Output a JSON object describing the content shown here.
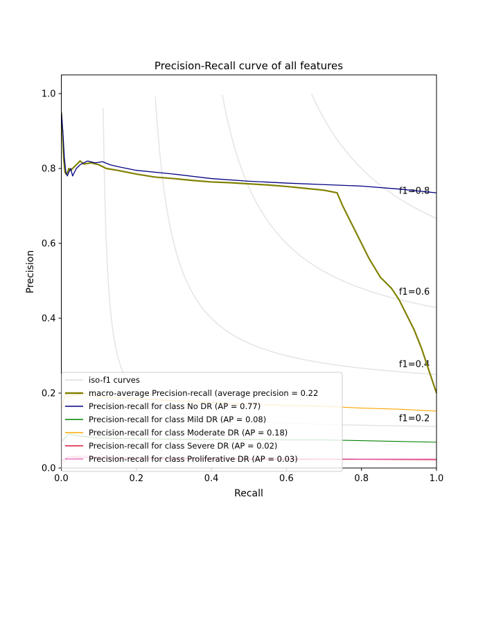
{
  "chart_data": {
    "type": "line",
    "title": "Precision-Recall curve of all features",
    "xlabel": "Recall",
    "ylabel": "Precision",
    "xlim": [
      0.0,
      1.0
    ],
    "ylim": [
      0.0,
      1.05
    ],
    "xticks": [
      "0.0",
      "0.2",
      "0.4",
      "0.6",
      "0.8",
      "1.0"
    ],
    "yticks": [
      "0.0",
      "0.2",
      "0.4",
      "0.6",
      "0.8",
      "1.0"
    ],
    "grid": false,
    "legend_position": "bottom-left",
    "iso_f1": {
      "legend_label": "iso-f1 curves",
      "color": "#e6e6e6",
      "curves": [
        {
          "f1": 0.2,
          "label": "f1=0.2"
        },
        {
          "f1": 0.4,
          "label": "f1=0.4"
        },
        {
          "f1": 0.6,
          "label": "f1=0.6"
        },
        {
          "f1": 0.8,
          "label": "f1=0.8"
        }
      ]
    },
    "series": [
      {
        "name": "macro-average Precision-recall (average precision = 0.22",
        "color": "#808000",
        "width": 2.2,
        "x": [
          0.0,
          0.003,
          0.006,
          0.01,
          0.013,
          0.017,
          0.02,
          0.025,
          0.03,
          0.04,
          0.05,
          0.06,
          0.08,
          0.1,
          0.12,
          0.15,
          0.2,
          0.25,
          0.3,
          0.35,
          0.4,
          0.45,
          0.5,
          0.55,
          0.6,
          0.65,
          0.7,
          0.735,
          0.75,
          0.78,
          0.8,
          0.82,
          0.85,
          0.88,
          0.9,
          0.92,
          0.94,
          0.96,
          0.98,
          1.0
        ],
        "y": [
          0.95,
          0.9,
          0.83,
          0.79,
          0.785,
          0.79,
          0.8,
          0.795,
          0.8,
          0.81,
          0.82,
          0.812,
          0.815,
          0.81,
          0.8,
          0.795,
          0.785,
          0.777,
          0.773,
          0.768,
          0.764,
          0.762,
          0.759,
          0.756,
          0.752,
          0.747,
          0.742,
          0.735,
          0.7,
          0.64,
          0.6,
          0.56,
          0.51,
          0.48,
          0.45,
          0.41,
          0.37,
          0.32,
          0.26,
          0.2
        ]
      },
      {
        "name": "Precision-recall for class No DR (AP = 0.77)",
        "color": "#000080",
        "width": 1.3,
        "x": [
          0.0,
          0.004,
          0.008,
          0.012,
          0.016,
          0.02,
          0.025,
          0.03,
          0.04,
          0.05,
          0.07,
          0.09,
          0.11,
          0.13,
          0.15,
          0.2,
          0.3,
          0.4,
          0.5,
          0.6,
          0.7,
          0.8,
          0.9,
          1.0
        ],
        "y": [
          0.95,
          0.9,
          0.83,
          0.79,
          0.78,
          0.79,
          0.8,
          0.78,
          0.8,
          0.81,
          0.82,
          0.815,
          0.818,
          0.81,
          0.805,
          0.795,
          0.785,
          0.773,
          0.766,
          0.761,
          0.757,
          0.753,
          0.745,
          0.735
        ]
      },
      {
        "name": "Precision-recall for class Mild DR (AP = 0.08)",
        "color": "#008000",
        "width": 1.1,
        "x": [
          0.0,
          0.01,
          0.02,
          0.05,
          0.1,
          0.2,
          0.3,
          0.4,
          0.5,
          0.6,
          0.7,
          0.8,
          0.9,
          1.0
        ],
        "y": [
          0.07,
          0.08,
          0.09,
          0.085,
          0.08,
          0.078,
          0.077,
          0.076,
          0.076,
          0.075,
          0.075,
          0.073,
          0.071,
          0.069
        ]
      },
      {
        "name": "Precision-recall for class Moderate DR (AP = 0.18)",
        "color": "#ffa500",
        "width": 1.1,
        "x": [
          0.0,
          0.01,
          0.02,
          0.04,
          0.06,
          0.1,
          0.2,
          0.3,
          0.4,
          0.5,
          0.6,
          0.7,
          0.8,
          0.9,
          1.0
        ],
        "y": [
          0.15,
          0.2,
          0.19,
          0.195,
          0.2,
          0.19,
          0.185,
          0.18,
          0.175,
          0.17,
          0.167,
          0.165,
          0.16,
          0.157,
          0.152
        ]
      },
      {
        "name": "Precision-recall for class Severe DR (AP = 0.02)",
        "color": "#dc143c",
        "width": 1.1,
        "x": [
          0.0,
          0.01,
          0.02,
          0.05,
          0.1,
          0.2,
          0.4,
          0.6,
          0.8,
          1.0
        ],
        "y": [
          0.02,
          0.025,
          0.03,
          0.028,
          0.026,
          0.025,
          0.024,
          0.023,
          0.023,
          0.022
        ]
      },
      {
        "name": "Precision-recall for class Proliferative DR (AP = 0.03)",
        "color": "#e377c2",
        "width": 1.1,
        "x": [
          0.0,
          0.01,
          0.02,
          0.05,
          0.1,
          0.2,
          0.4,
          0.6,
          0.8,
          1.0
        ],
        "y": [
          0.01,
          0.02,
          0.03,
          0.032,
          0.03,
          0.028,
          0.026,
          0.025,
          0.024,
          0.024
        ]
      }
    ]
  }
}
